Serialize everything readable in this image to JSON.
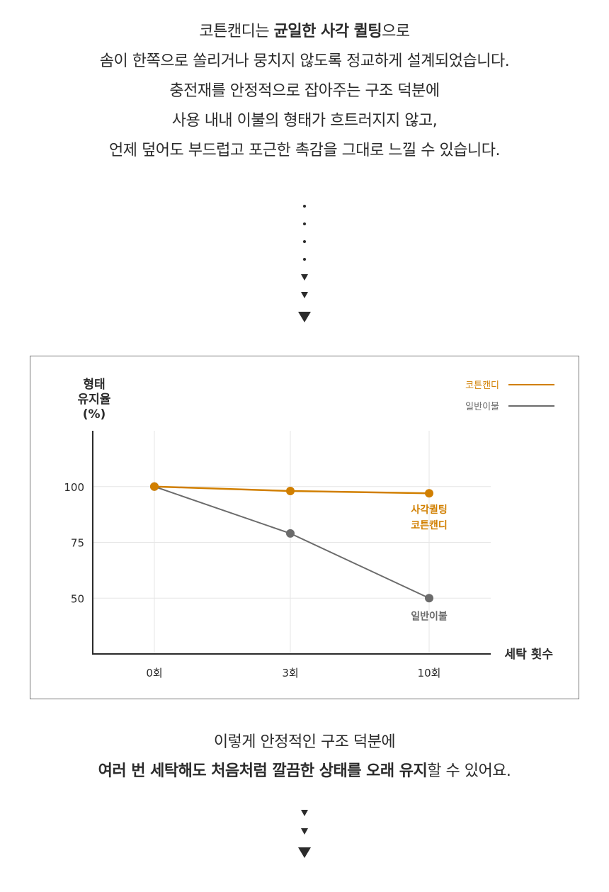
{
  "intro": {
    "line1_pre": "코튼캔디는 ",
    "line1_bold": "균일한 사각 퀼팅",
    "line1_post": "으로",
    "line2": "솜이 한쪽으로 쏠리거나 뭉치지 않도록 정교하게 설계되었습니다.",
    "line3": "충전재를 안정적으로 잡아주는 구조 덕분에",
    "line4": "사용 내내 이불의 형태가 흐트러지지 않고,",
    "line5": "언제 덮어도 부드럽고 포근한 촉감을 그대로 느낄 수 있습니다."
  },
  "chart_data": {
    "type": "line",
    "ylabel_lines": [
      "형태",
      "유지율",
      "(%)"
    ],
    "xlabel": "세탁 횟수",
    "categories": [
      "0회",
      "3회",
      "10회"
    ],
    "yticks": [
      100,
      75,
      50
    ],
    "ylim": [
      25,
      125
    ],
    "grid": true,
    "legend_position": "top-right",
    "series": [
      {
        "name": "코튼캔디",
        "color": "#d17f00",
        "values": [
          100,
          98,
          97
        ],
        "end_label": [
          "사각퀼팅",
          "코튼캔디"
        ]
      },
      {
        "name": "일반이불",
        "color": "#6b6b6b",
        "values": [
          100,
          79,
          50
        ],
        "end_label": [
          "일반이불"
        ]
      }
    ]
  },
  "outro": {
    "line1": "이렇게 안정적인 구조 덕분에",
    "line2_bold": "여러 번 세탁해도 처음처럼 깔끔한 상태를 오래 유지",
    "line2_post": "할 수 있어요."
  }
}
